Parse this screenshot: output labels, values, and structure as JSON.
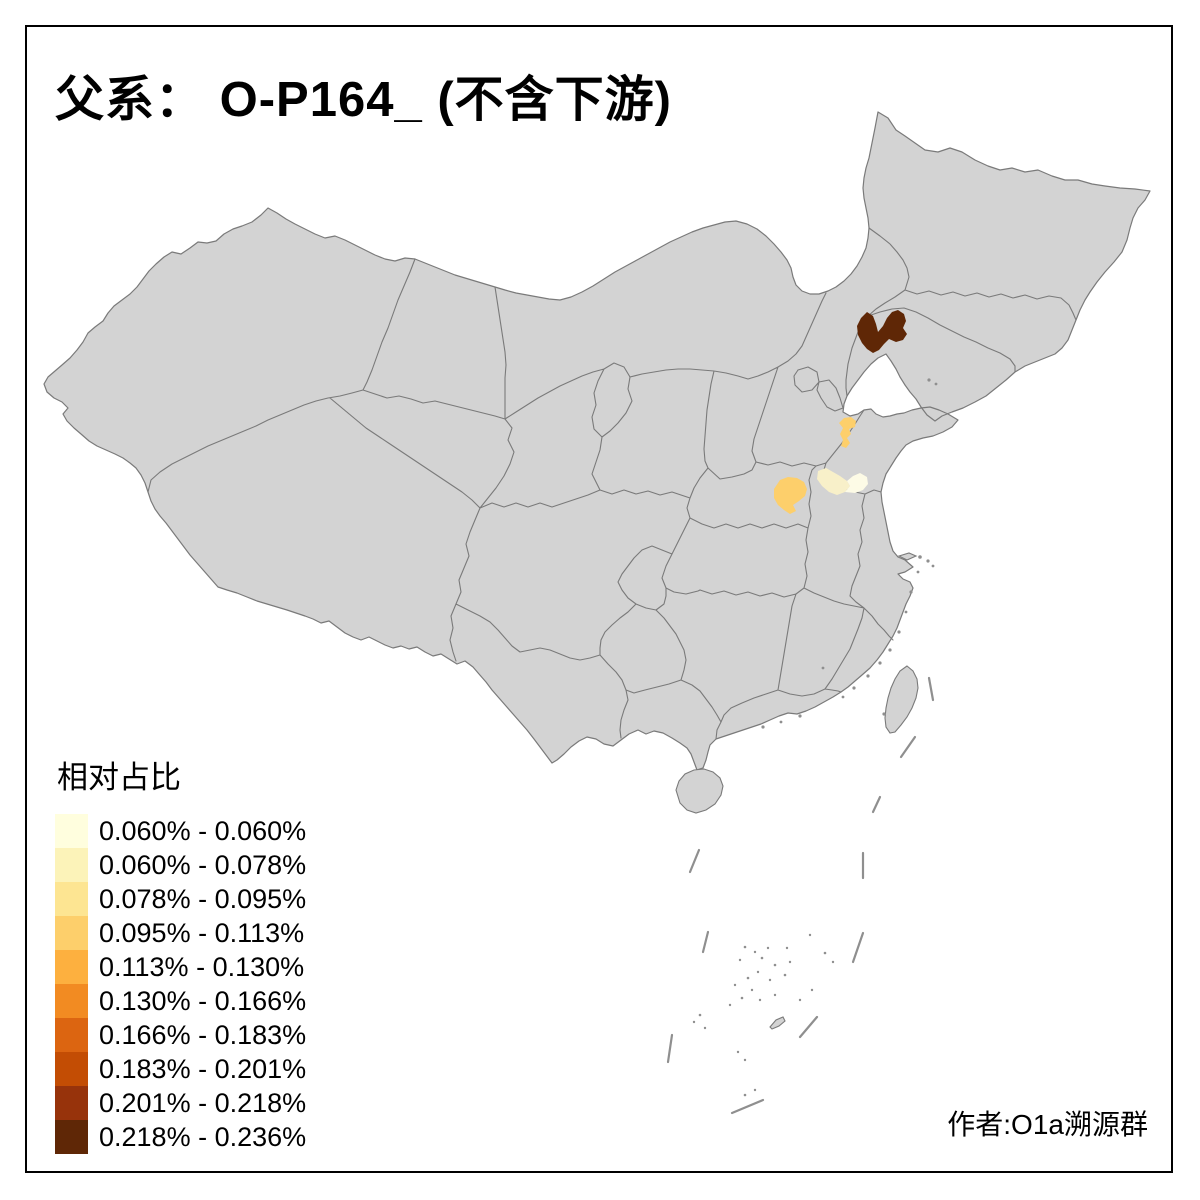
{
  "title": "父系： O-P164_ (不含下游)",
  "legend": {
    "title": "相对占比",
    "items": [
      {
        "label": "0.060% - 0.060%",
        "color": "#FFFEDE"
      },
      {
        "label": "0.060% - 0.078%",
        "color": "#FCF3B9"
      },
      {
        "label": "0.078% - 0.095%",
        "color": "#FDE592"
      },
      {
        "label": "0.095% - 0.113%",
        "color": "#FDCF6B"
      },
      {
        "label": "0.113% - 0.130%",
        "color": "#FDB03F"
      },
      {
        "label": "0.130% - 0.166%",
        "color": "#F28B22"
      },
      {
        "label": "0.166% - 0.183%",
        "color": "#DC6511"
      },
      {
        "label": "0.183% - 0.201%",
        "color": "#C34D04"
      },
      {
        "label": "0.201% - 0.218%",
        "color": "#97330B"
      },
      {
        "label": "0.218% - 0.236%",
        "color": "#5F2706"
      }
    ]
  },
  "attribution": "作者:O1a溯源群",
  "map": {
    "base_fill": "#D3D3D3",
    "border_color": "#7A7A7A",
    "highlighted_regions": [
      {
        "id": "liaoning-dark",
        "class_label": "0.218% - 0.236%",
        "color": "#5F2706"
      },
      {
        "id": "shandong-mid",
        "class_label": "0.095% - 0.113%",
        "color": "#FDCF6B"
      },
      {
        "id": "henan-mid",
        "class_label": "0.095% - 0.113%",
        "color": "#FDCF6B"
      },
      {
        "id": "border-light-west",
        "class_label": "0.060% - 0.078%",
        "color": "#F8F0C9"
      },
      {
        "id": "border-light-east",
        "class_label": "0.060% - 0.060%",
        "color": "#FDFBE6"
      }
    ]
  }
}
